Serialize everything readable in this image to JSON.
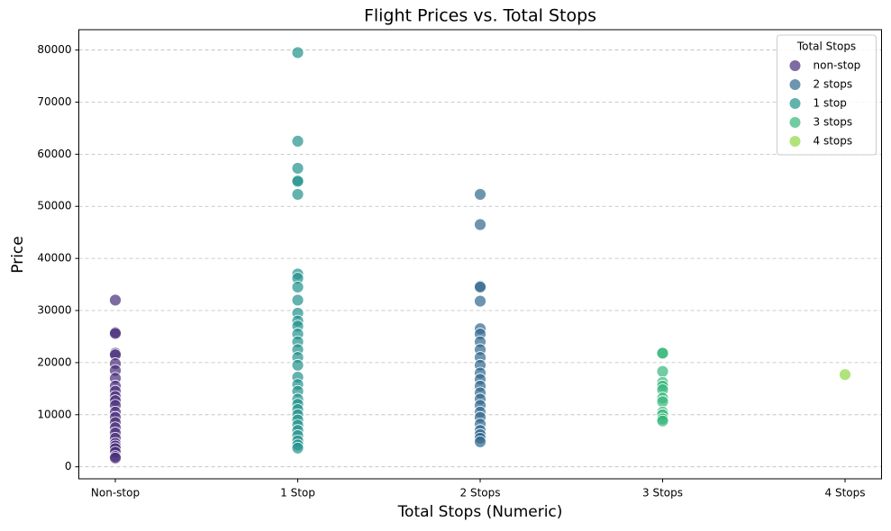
{
  "chart_data": {
    "type": "scatter",
    "title": "Flight Prices vs. Total Stops",
    "x_label": "Total Stops (Numeric)",
    "y_label": "Price",
    "xlim": [
      -0.2,
      4.2
    ],
    "ylim": [
      -2300,
      83900
    ],
    "xticks": [
      {
        "value": 0,
        "label": "Non-stop"
      },
      {
        "value": 1,
        "label": "1 Stop"
      },
      {
        "value": 2,
        "label": "2 Stops"
      },
      {
        "value": 3,
        "label": "3 Stops"
      },
      {
        "value": 4,
        "label": "4 Stops"
      }
    ],
    "yticks": [
      0,
      10000,
      20000,
      30000,
      40000,
      50000,
      60000,
      70000,
      80000
    ],
    "grid": true,
    "legend_title": "Total Stops",
    "legend_position": "upper-right",
    "series": [
      {
        "name": "non-stop",
        "color": "#472c7a",
        "x": [
          0,
          0,
          0,
          0,
          0,
          0,
          0,
          0,
          0,
          0,
          0,
          0,
          0,
          0,
          0,
          0,
          0,
          0,
          0,
          0,
          0,
          0,
          0,
          0,
          0
        ],
        "values": [
          32000,
          25800,
          25600,
          21800,
          21500,
          19800,
          18500,
          17000,
          15500,
          14500,
          13500,
          12700,
          11800,
          10500,
          9500,
          8500,
          7500,
          6500,
          5500,
          4500,
          4000,
          3500,
          2800,
          2000,
          1700
        ]
      },
      {
        "name": "2 stops",
        "color": "#31688e",
        "x": [
          2,
          2,
          2,
          2,
          2,
          2,
          2,
          2,
          2,
          2,
          2,
          2,
          2,
          2,
          2,
          2,
          2,
          2,
          2,
          2,
          2,
          2,
          2,
          2
        ],
        "values": [
          52300,
          46500,
          34700,
          34500,
          31800,
          26500,
          25500,
          24000,
          22500,
          21000,
          19500,
          18000,
          16800,
          15500,
          14200,
          13000,
          11800,
          10500,
          9500,
          8200,
          7000,
          6200,
          5500,
          4800
        ]
      },
      {
        "name": "1 stop",
        "color": "#21918c",
        "x": [
          1,
          1,
          1,
          1,
          1,
          1,
          1,
          1,
          1,
          1,
          1,
          1,
          1,
          1,
          1,
          1,
          1,
          1,
          1,
          1,
          1,
          1,
          1,
          1,
          1,
          1,
          1,
          1,
          1,
          1,
          1,
          1
        ],
        "values": [
          79500,
          62500,
          57300,
          55000,
          54800,
          52300,
          37000,
          36200,
          34500,
          32000,
          29500,
          28000,
          27000,
          25500,
          24000,
          22500,
          21000,
          19500,
          17200,
          15800,
          14500,
          13000,
          12000,
          11000,
          10000,
          9000,
          8000,
          7000,
          6000,
          5000,
          4200,
          3600
        ]
      },
      {
        "name": "3 stops",
        "color": "#35b779",
        "x": [
          3,
          3,
          3,
          3,
          3,
          3,
          3,
          3,
          3,
          3,
          3,
          3
        ],
        "values": [
          21900,
          21800,
          18300,
          16200,
          15500,
          14800,
          13200,
          12500,
          10500,
          10000,
          9200,
          8800
        ]
      },
      {
        "name": "4 stops",
        "color": "#90d743",
        "x": [
          4
        ],
        "values": [
          17700
        ]
      }
    ]
  }
}
